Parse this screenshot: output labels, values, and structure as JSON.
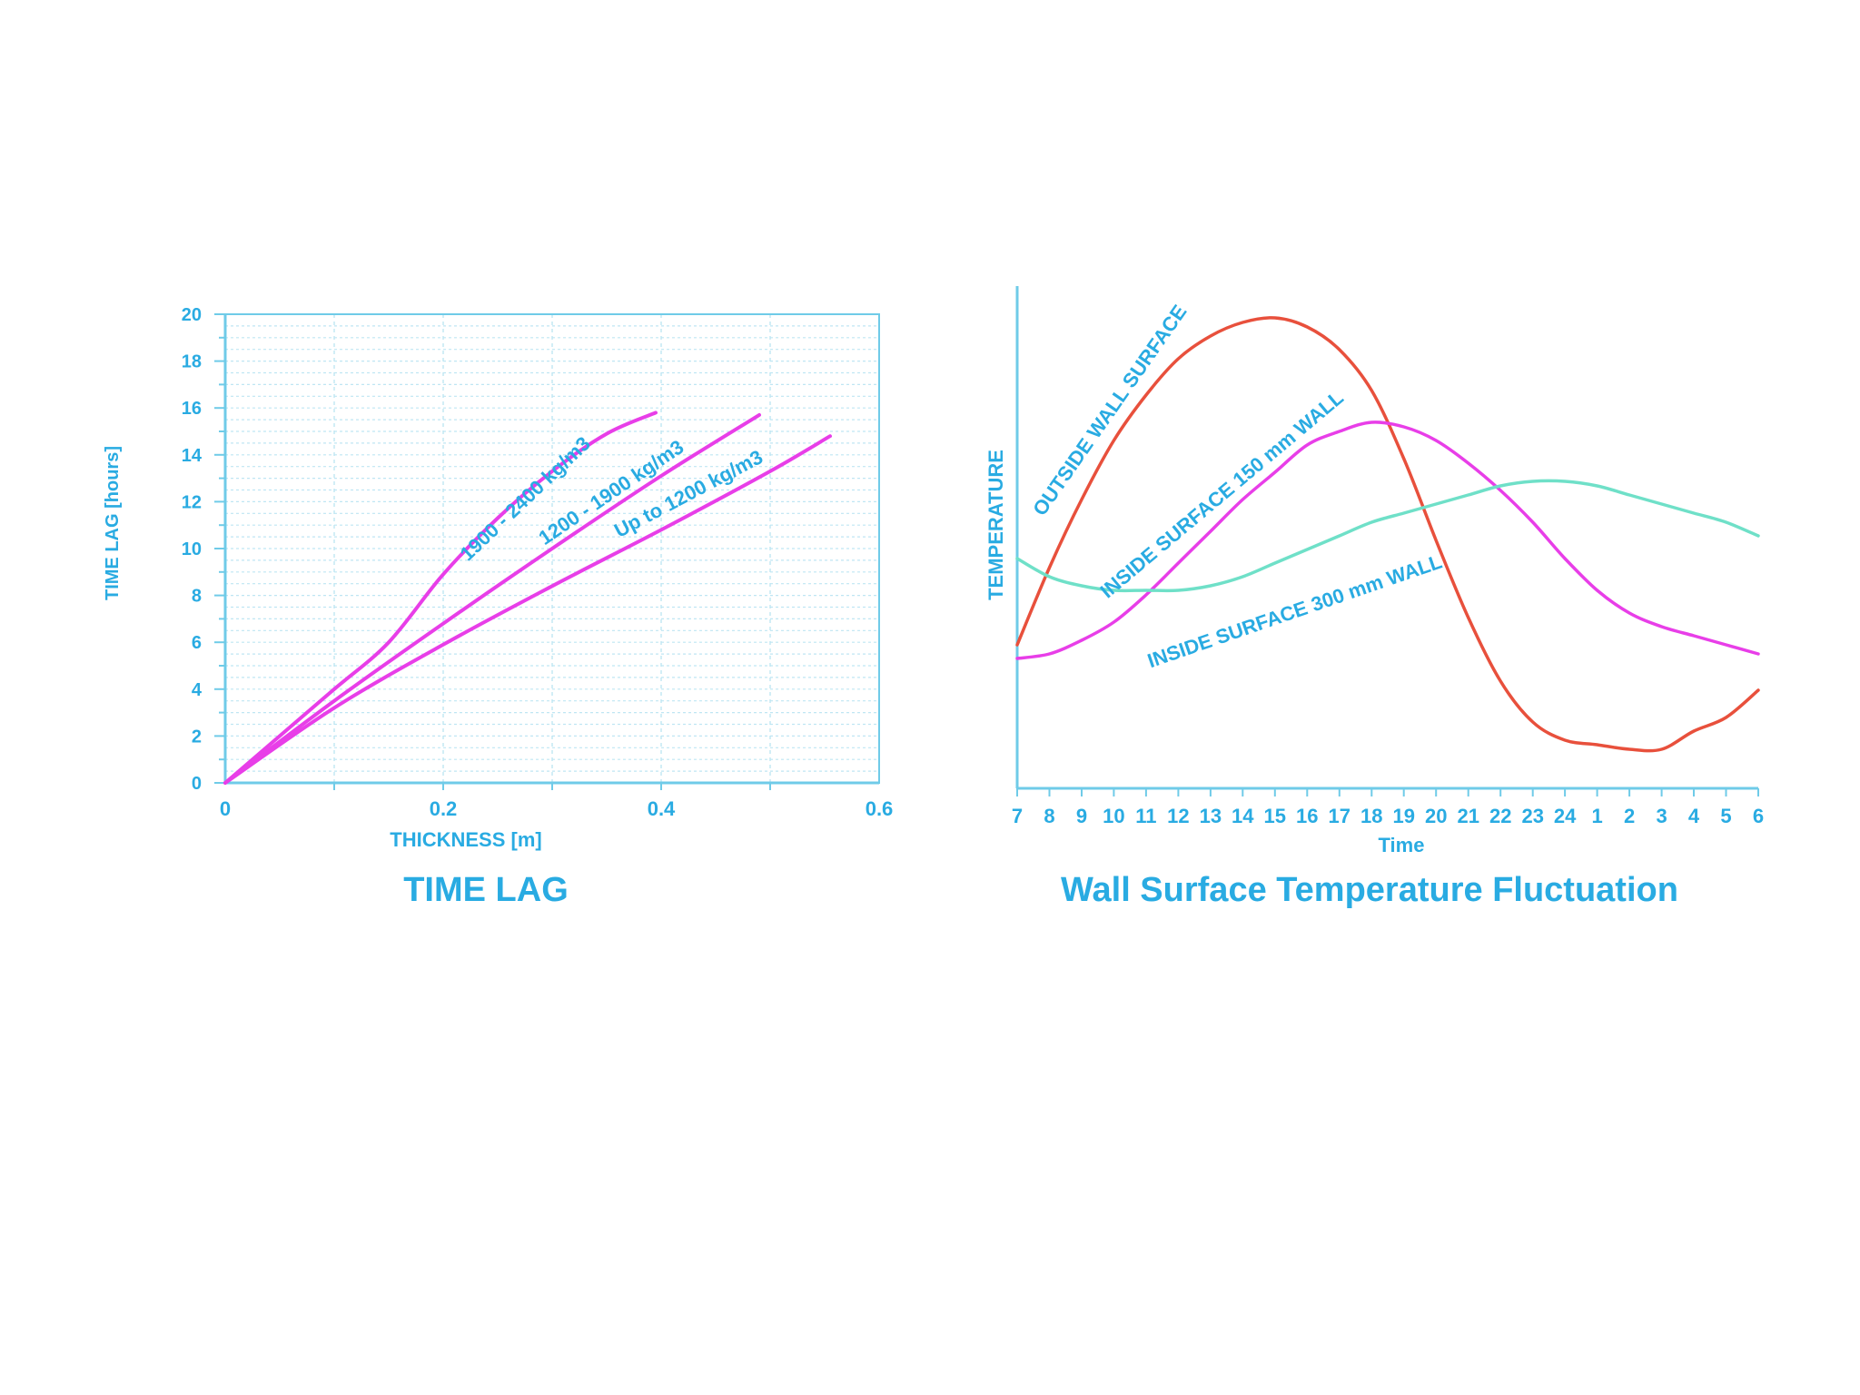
{
  "chart_data": [
    {
      "type": "line",
      "title": "TIME LAG",
      "xlabel": "THICKNESS [m]",
      "ylabel": "TIME LAG [hours]",
      "xlim": [
        0,
        0.6
      ],
      "ylim": [
        0,
        20
      ],
      "xticks": [
        "0",
        "0.2",
        "0.4",
        "0.6"
      ],
      "yticks": [
        "0",
        "2",
        "4",
        "6",
        "8",
        "10",
        "12",
        "14",
        "16",
        "18",
        "20"
      ],
      "grid": true,
      "colors": {
        "axis": "#6fcbe8",
        "text": "#29abe2",
        "grid": "#bfe6f3",
        "line": "#e83ee8"
      },
      "series": [
        {
          "name": "1900 - 2400 kg/m3",
          "x": [
            0,
            0.05,
            0.1,
            0.15,
            0.2,
            0.25,
            0.3,
            0.35,
            0.395
          ],
          "y": [
            0,
            2,
            4,
            6,
            8.9,
            11.3,
            13.3,
            14.9,
            15.8
          ]
        },
        {
          "name": "1200 - 1900 kg/m3",
          "x": [
            0,
            0.1,
            0.2,
            0.3,
            0.4,
            0.49
          ],
          "y": [
            0,
            3.5,
            6.8,
            10,
            13.1,
            15.7
          ]
        },
        {
          "name": "Up to 1200 kg/m3",
          "x": [
            0,
            0.1,
            0.2,
            0.3,
            0.4,
            0.5,
            0.555
          ],
          "y": [
            0,
            3.2,
            5.9,
            8.4,
            10.8,
            13.3,
            14.8
          ]
        }
      ]
    },
    {
      "type": "line",
      "title": "Wall Surface Temperature Fluctuation",
      "xlabel": "Time",
      "ylabel": "TEMPERATURE",
      "categories": [
        "7",
        "8",
        "9",
        "10",
        "11",
        "12",
        "13",
        "14",
        "15",
        "16",
        "17",
        "18",
        "19",
        "20",
        "21",
        "22",
        "23",
        "24",
        "1",
        "2",
        "3",
        "4",
        "5",
        "6"
      ],
      "ylim": [
        0,
        100
      ],
      "colors": {
        "axis": "#6fcbe8",
        "text": "#29abe2",
        "outside": "#e8503c",
        "inside150": "#e83ee8",
        "inside300": "#6fe0c8"
      },
      "series": [
        {
          "name": "OUTSIDE WALL SURFACE",
          "values": [
            27,
            44,
            59,
            72,
            82,
            90,
            95,
            98,
            99,
            97,
            92,
            83,
            68,
            50,
            33,
            19,
            10,
            6,
            5,
            4,
            4,
            8,
            11,
            17
          ]
        },
        {
          "name": "INSIDE SURFACE 150 mm WALL",
          "values": [
            24,
            25,
            28,
            32,
            38,
            45,
            52,
            59,
            65,
            71,
            74,
            76,
            75,
            72,
            67,
            61,
            54,
            46,
            39,
            34,
            31,
            29,
            27,
            25
          ]
        },
        {
          "name": "INSIDE SURFACE 300 mm WALL",
          "values": [
            46,
            42,
            40,
            39,
            39,
            39,
            40,
            42,
            45,
            48,
            51,
            54,
            56,
            58,
            60,
            62,
            63,
            63,
            62,
            60,
            58,
            56,
            54,
            51
          ]
        }
      ]
    }
  ]
}
